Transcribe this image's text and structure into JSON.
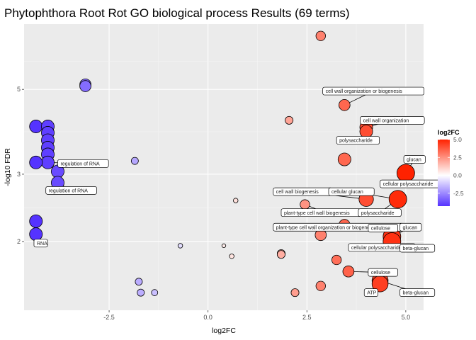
{
  "chart_data": {
    "type": "scatter",
    "title": "Phytophthora Root Rot GO biological process Results (69 terms)",
    "xlabel": "log2FC",
    "ylabel": "-log10 FDR",
    "x_ticks": [
      -2.5,
      0.0,
      2.5,
      5.0
    ],
    "x_tick_labels": [
      "-2.5",
      "0.0",
      "2.5",
      "5.0"
    ],
    "y_ticks": [
      2,
      3,
      5
    ],
    "y_tick_labels": [
      "2",
      "3",
      "5"
    ],
    "y_scale": "log10",
    "xlim": [
      -4.65,
      5.45
    ],
    "ylim": [
      1.322,
      7.41
    ],
    "grid": true,
    "legend": {
      "title": "log2FC",
      "position": "right",
      "ticks": [
        5.0,
        2.5,
        0.0,
        -2.5
      ],
      "tick_labels": [
        "5.0",
        "2.5",
        "0.0",
        "-2.5"
      ],
      "colors": {
        "low": "#5533ff",
        "mid": "#ffffff",
        "high": "#ff2200"
      },
      "range": [
        -4.3,
        5.0
      ]
    },
    "points": [
      {
        "x": 2.85,
        "y": 6.9,
        "size": 5
      },
      {
        "x": 3.45,
        "y": 4.55,
        "size": 6
      },
      {
        "x": 2.05,
        "y": 4.15,
        "size": 4
      },
      {
        "x": 4.0,
        "y": 3.98,
        "size": 7
      },
      {
        "x": 4.0,
        "y": 3.88,
        "size": 7
      },
      {
        "x": 3.45,
        "y": 3.28,
        "size": 7
      },
      {
        "x": 5.0,
        "y": 3.02,
        "size": 10
      },
      {
        "x": 4.0,
        "y": 2.58,
        "size": 8
      },
      {
        "x": 2.45,
        "y": 2.5,
        "size": 5
      },
      {
        "x": 4.8,
        "y": 2.58,
        "size": 10
      },
      {
        "x": 3.45,
        "y": 2.21,
        "size": 6
      },
      {
        "x": 2.85,
        "y": 2.08,
        "size": 6
      },
      {
        "x": 4.65,
        "y": 2.06,
        "size": 10
      },
      {
        "x": 4.65,
        "y": 2.0,
        "size": 10
      },
      {
        "x": 3.25,
        "y": 1.79,
        "size": 5
      },
      {
        "x": 3.55,
        "y": 1.67,
        "size": 6
      },
      {
        "x": 4.35,
        "y": 1.58,
        "size": 9
      },
      {
        "x": 4.35,
        "y": 1.55,
        "size": 9
      },
      {
        "x": 2.85,
        "y": 1.53,
        "size": 5
      },
      {
        "x": 2.2,
        "y": 1.47,
        "size": 4
      },
      {
        "x": 1.85,
        "y": 1.86,
        "size": 4
      },
      {
        "x": 1.85,
        "y": 1.85,
        "size": 4
      },
      {
        "x": 0.7,
        "y": 2.56,
        "size": 2
      },
      {
        "x": 0.6,
        "y": 1.83,
        "size": 2
      },
      {
        "x": 0.4,
        "y": 1.95,
        "size": 1.5
      },
      {
        "x": -0.7,
        "y": 1.95,
        "size": 2
      },
      {
        "x": -1.85,
        "y": 3.25,
        "size": 3.5
      },
      {
        "x": -3.1,
        "y": 5.15,
        "size": 6
      },
      {
        "x": -3.1,
        "y": 5.1,
        "size": 6
      },
      {
        "x": -4.35,
        "y": 4.0,
        "size": 7
      },
      {
        "x": -4.05,
        "y": 4.0,
        "size": 7
      },
      {
        "x": -4.05,
        "y": 3.85,
        "size": 7
      },
      {
        "x": -4.05,
        "y": 3.68,
        "size": 7
      },
      {
        "x": -4.05,
        "y": 3.52,
        "size": 7
      },
      {
        "x": -4.05,
        "y": 3.38,
        "size": 7
      },
      {
        "x": -4.05,
        "y": 3.22,
        "size": 7
      },
      {
        "x": -4.35,
        "y": 3.22,
        "size": 7
      },
      {
        "x": -3.8,
        "y": 3.05,
        "size": 7
      },
      {
        "x": -3.8,
        "y": 2.85,
        "size": 7
      },
      {
        "x": -4.35,
        "y": 2.26,
        "size": 7
      },
      {
        "x": -4.35,
        "y": 2.09,
        "size": 7
      },
      {
        "x": -1.75,
        "y": 1.57,
        "size": 3.5
      },
      {
        "x": -1.7,
        "y": 1.47,
        "size": 3.5
      },
      {
        "x": -1.35,
        "y": 1.47,
        "size": 3
      }
    ],
    "labels": [
      {
        "text": "cell wall organization or biogenesis",
        "lx": 2.9,
        "ly": 4.95,
        "px": 3.45,
        "py": 4.55
      },
      {
        "text": "cell wall organization",
        "lx": 3.85,
        "ly": 4.15,
        "px": 4.0,
        "py": 3.98
      },
      {
        "text": "polysaccharide",
        "lx": 3.25,
        "ly": 3.68,
        "px": 4.0,
        "py": 3.88
      },
      {
        "text": "glucan",
        "lx": 4.95,
        "ly": 3.28,
        "px": 5.0,
        "py": 3.02
      },
      {
        "text": "cellular polysaccharide",
        "lx": 4.35,
        "ly": 2.83,
        "px": 5.0,
        "py": 3.02
      },
      {
        "text": "cell wall biogenesis",
        "lx": 1.65,
        "ly": 2.7,
        "px": 4.0,
        "py": 2.58
      },
      {
        "text": "cellular glucan",
        "lx": 3.05,
        "ly": 2.7,
        "px": 4.8,
        "py": 2.58
      },
      {
        "text": "plant-type cell wall biogenesis",
        "lx": 1.85,
        "ly": 2.38,
        "px": 2.45,
        "py": 2.5
      },
      {
        "text": "polysaccharide",
        "lx": 3.8,
        "ly": 2.38,
        "px": 4.8,
        "py": 2.58
      },
      {
        "text": "plant-type cell wall organization or biogenesis",
        "lx": 1.65,
        "ly": 2.18,
        "px": 3.45,
        "py": 2.21
      },
      {
        "text": "cellulose",
        "lx": 4.05,
        "ly": 2.17,
        "px": 4.65,
        "py": 2.06
      },
      {
        "text": "glucan",
        "lx": 4.85,
        "ly": 2.18,
        "px": 4.65,
        "py": 2.06
      },
      {
        "text": "cellular polysaccharide",
        "lx": 3.55,
        "ly": 1.93,
        "px": 4.65,
        "py": 2.0
      },
      {
        "text": "beta-glucan",
        "lx": 4.85,
        "ly": 1.92,
        "px": 4.65,
        "py": 2.0
      },
      {
        "text": "cellulose",
        "lx": 4.05,
        "ly": 1.66,
        "px": 3.55,
        "py": 1.67
      },
      {
        "text": "ATP",
        "lx": 3.95,
        "ly": 1.47,
        "px": 4.35,
        "py": 1.55
      },
      {
        "text": "beta-glucan",
        "lx": 4.85,
        "ly": 1.47,
        "px": 4.35,
        "py": 1.58
      },
      {
        "text": "regulation of RNA",
        "lx": -3.8,
        "ly": 3.2,
        "px": -4.05,
        "py": 3.22
      },
      {
        "text": "regulation of RNA",
        "lx": -4.1,
        "ly": 2.72,
        "px": -3.8,
        "py": 2.85
      },
      {
        "text": "RNA",
        "lx": -4.4,
        "ly": 1.98,
        "px": -4.35,
        "py": 2.09
      }
    ]
  }
}
